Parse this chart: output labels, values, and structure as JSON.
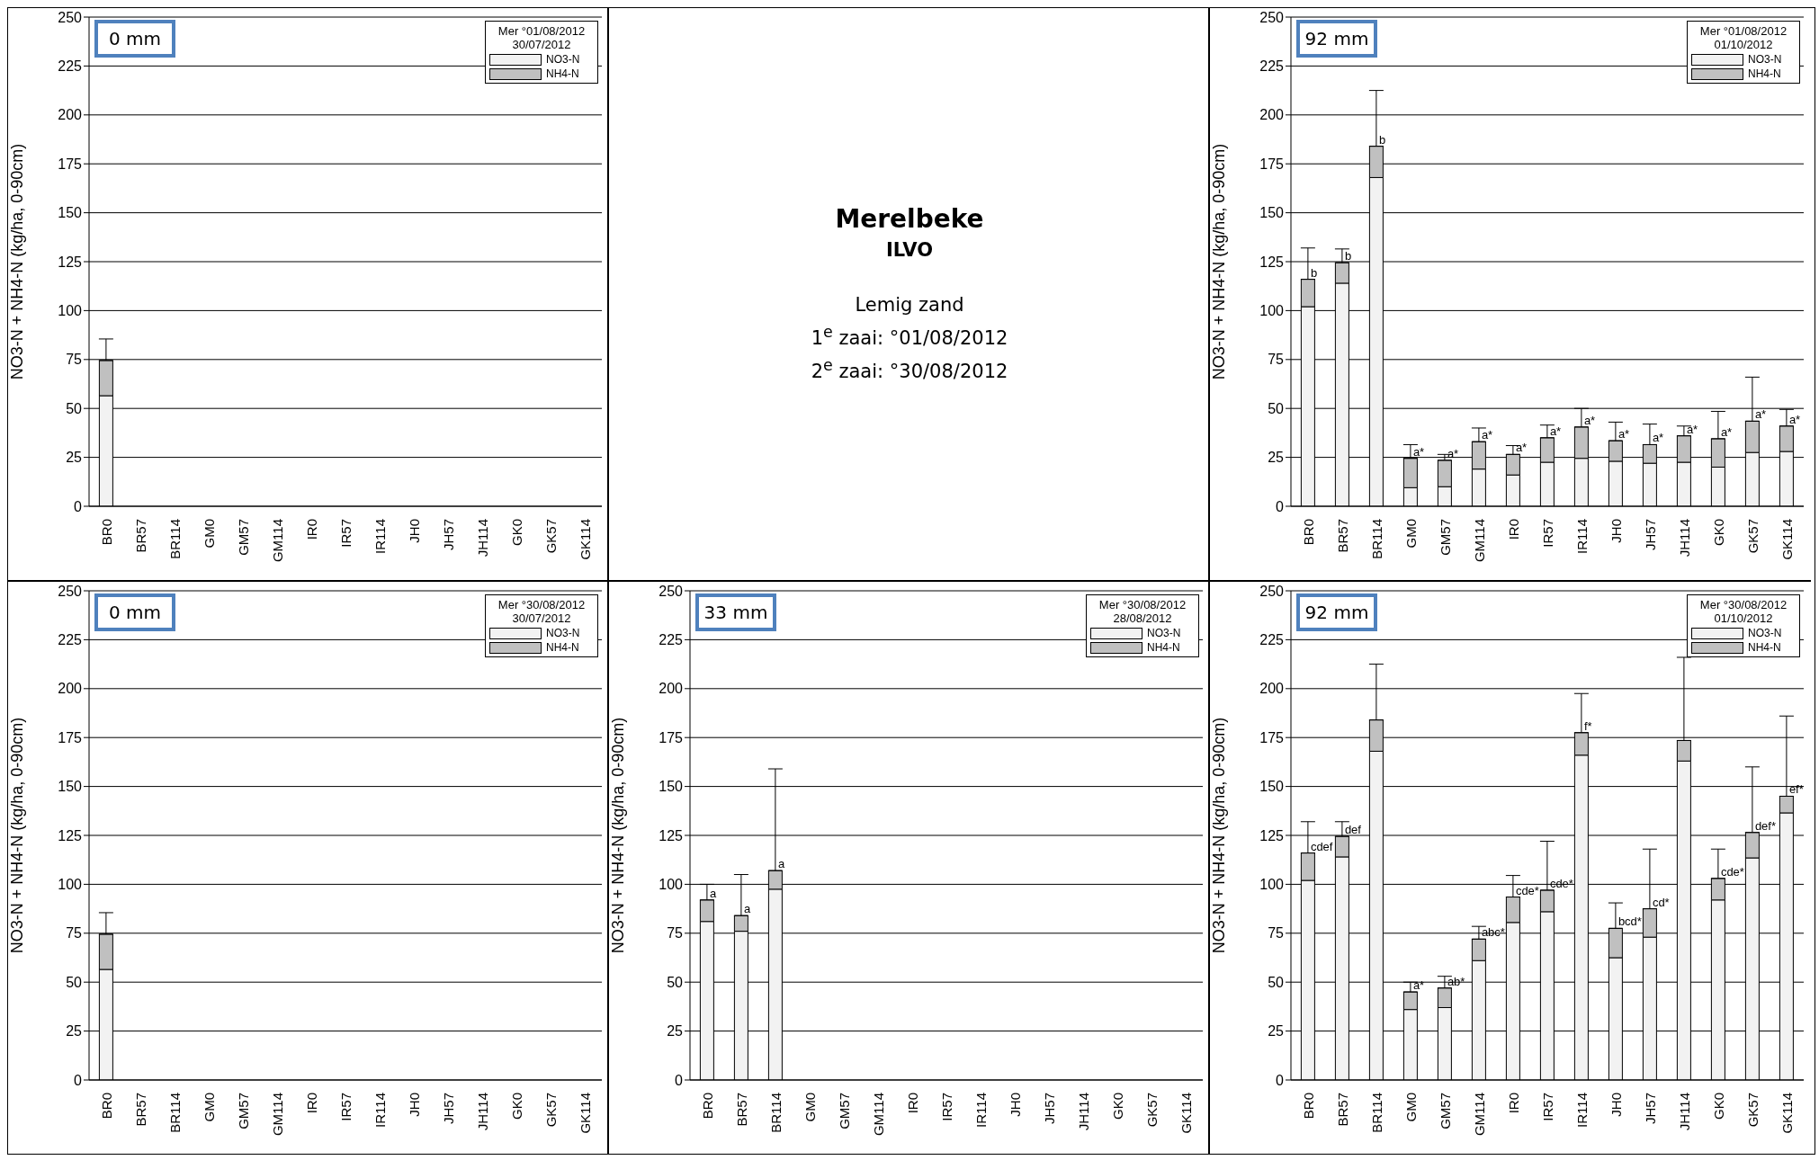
{
  "chart_data": [
    {
      "type": "bar",
      "title": "0 mm",
      "legend_title": "Mer °01/08/2012\n30/07/2012",
      "ylabel": "NO3-N + NH4-N (kg/ha, 0-90cm)",
      "categories": [
        "BR0",
        "BR57",
        "BR114",
        "GM0",
        "GM57",
        "GM114",
        "IR0",
        "IR57",
        "IR114",
        "JH0",
        "JH57",
        "JH114",
        "GK0",
        "GK57",
        "GK114"
      ],
      "stacked": true,
      "ylim": [
        0,
        250
      ],
      "yticks": [
        0,
        25,
        50,
        75,
        100,
        125,
        150,
        175,
        200,
        225,
        250
      ],
      "grid": "y",
      "legend": "top right",
      "series": [
        {
          "name": "NO3-N",
          "color": "#f2f2f2",
          "values": [
            56.5,
            0,
            0,
            0,
            0,
            0,
            0,
            0,
            0,
            0,
            0,
            0,
            0,
            0,
            0
          ]
        },
        {
          "name": "NH4-N",
          "color": "#c0c0c0",
          "values": [
            18,
            0,
            0,
            0,
            0,
            0,
            0,
            0,
            0,
            0,
            0,
            0,
            0,
            0,
            0
          ],
          "errors": [
            [
              74.5,
              85.5
            ],
            null,
            null,
            null,
            null,
            null,
            null,
            null,
            null,
            null,
            null,
            null,
            null,
            null,
            null
          ]
        }
      ]
    },
    {
      "type": "other",
      "title": "Merelbeke",
      "subtitle": "ILVO",
      "annotations": [
        "Lemig zand",
        "1$^{e}$ zaai: °01/08/2012",
        "2$^{e}$ zaai: °30/08/2012"
      ]
    },
    {
      "type": "bar",
      "title": "92 mm",
      "legend_title": "Mer °01/08/2012\n01/10/2012",
      "ylabel": "NO3-N + NH4-N (kg/ha, 0-90cm)",
      "categories": [
        "BR0",
        "BR57",
        "BR114",
        "GM0",
        "GM57",
        "GM114",
        "IR0",
        "IR57",
        "IR114",
        "JH0",
        "JH57",
        "JH114",
        "GK0",
        "GK57",
        "GK114"
      ],
      "stacked": true,
      "ylim": [
        0,
        250
      ],
      "yticks": [
        0,
        25,
        50,
        75,
        100,
        125,
        150,
        175,
        200,
        225,
        250
      ],
      "grid": "y",
      "legend": "top right",
      "series": [
        {
          "name": "NO3-N",
          "color": "#f2f2f2",
          "values": [
            102,
            114,
            168,
            9.5,
            10,
            19,
            16,
            22.5,
            24.5,
            23,
            22,
            22.5,
            20,
            27.5,
            28
          ]
        },
        {
          "name": "NH4-N",
          "color": "#c0c0c0",
          "values": [
            14,
            10.5,
            16,
            15,
            13.5,
            14,
            10.5,
            12.5,
            16,
            10.5,
            9.5,
            13.5,
            14.5,
            16,
            13
          ],
          "errors": [
            [
              116,
              132
            ],
            [
              124.5,
              131.5
            ],
            [
              184,
              212.5
            ],
            [
              24.5,
              31.5
            ],
            [
              23.5,
              26.5
            ],
            [
              33,
              40
            ],
            [
              26.5,
              31
            ],
            [
              35,
              41.5
            ],
            [
              40.5,
              50
            ],
            [
              33.5,
              43
            ],
            [
              31.5,
              42
            ],
            [
              36,
              41
            ],
            [
              34.5,
              48.5
            ],
            [
              43.5,
              66
            ],
            [
              41,
              49.5
            ]
          ],
          "value_labels": [
            "b",
            "b",
            "b",
            "a*",
            "a*",
            "a*",
            "a*",
            "a*",
            "a*",
            "a*",
            "a*",
            "a*",
            "a*",
            "a*",
            "a*"
          ]
        }
      ]
    },
    {
      "type": "bar",
      "title": "0 mm",
      "legend_title": "Mer °30/08/2012\n30/07/2012",
      "ylabel": "NO3-N + NH4-N (kg/ha, 0-90cm)",
      "categories": [
        "BR0",
        "BR57",
        "BR114",
        "GM0",
        "GM57",
        "GM114",
        "IR0",
        "IR57",
        "IR114",
        "JH0",
        "JH57",
        "JH114",
        "GK0",
        "GK57",
        "GK114"
      ],
      "stacked": true,
      "ylim": [
        0,
        250
      ],
      "yticks": [
        0,
        25,
        50,
        75,
        100,
        125,
        150,
        175,
        200,
        225,
        250
      ],
      "grid": "y",
      "legend": "top right",
      "series": [
        {
          "name": "NO3-N",
          "color": "#f2f2f2",
          "values": [
            56.5,
            0,
            0,
            0,
            0,
            0,
            0,
            0,
            0,
            0,
            0,
            0,
            0,
            0,
            0
          ]
        },
        {
          "name": "NH4-N",
          "color": "#c0c0c0",
          "values": [
            18,
            0,
            0,
            0,
            0,
            0,
            0,
            0,
            0,
            0,
            0,
            0,
            0,
            0,
            0
          ],
          "errors": [
            [
              74.5,
              85.5
            ],
            null,
            null,
            null,
            null,
            null,
            null,
            null,
            null,
            null,
            null,
            null,
            null,
            null,
            null
          ]
        }
      ]
    },
    {
      "type": "bar",
      "title": "33 mm",
      "legend_title": "Mer °30/08/2012\n28/08/2012",
      "ylabel": "NO3-N + NH4-N (kg/ha, 0-90cm)",
      "categories": [
        "BR0",
        "BR57",
        "BR114",
        "GM0",
        "GM57",
        "GM114",
        "IR0",
        "IR57",
        "IR114",
        "JH0",
        "JH57",
        "JH114",
        "GK0",
        "GK57",
        "GK114"
      ],
      "stacked": true,
      "ylim": [
        0,
        250
      ],
      "yticks": [
        0,
        25,
        50,
        75,
        100,
        125,
        150,
        175,
        200,
        225,
        250
      ],
      "grid": "y",
      "legend": "top right",
      "series": [
        {
          "name": "NO3-N",
          "color": "#f2f2f2",
          "values": [
            81,
            76,
            97.5,
            0,
            0,
            0,
            0,
            0,
            0,
            0,
            0,
            0,
            0,
            0,
            0
          ]
        },
        {
          "name": "NH4-N",
          "color": "#c0c0c0",
          "values": [
            11,
            8,
            9.5,
            0,
            0,
            0,
            0,
            0,
            0,
            0,
            0,
            0,
            0,
            0,
            0
          ],
          "errors": [
            [
              92,
              100
            ],
            [
              84,
              105
            ],
            [
              107,
              159
            ],
            null,
            null,
            null,
            null,
            null,
            null,
            null,
            null,
            null,
            null,
            null,
            null
          ],
          "value_labels": [
            "a",
            "a",
            "a",
            null,
            null,
            null,
            null,
            null,
            null,
            null,
            null,
            null,
            null,
            null,
            null
          ]
        }
      ]
    },
    {
      "type": "bar",
      "title": "92 mm",
      "legend_title": "Mer °30/08/2012\n01/10/2012",
      "ylabel": "NO3-N + NH4-N (kg/ha, 0-90cm)",
      "categories": [
        "BR0",
        "BR57",
        "BR114",
        "GM0",
        "GM57",
        "GM114",
        "IR0",
        "IR57",
        "IR114",
        "JH0",
        "JH57",
        "JH114",
        "GK0",
        "GK57",
        "GK114"
      ],
      "stacked": true,
      "ylim": [
        0,
        250
      ],
      "yticks": [
        0,
        25,
        50,
        75,
        100,
        125,
        150,
        175,
        200,
        225,
        250
      ],
      "grid": "y",
      "legend": "top right",
      "series": [
        {
          "name": "NO3-N",
          "color": "#f2f2f2",
          "values": [
            102,
            114,
            168,
            36,
            37,
            61,
            80.5,
            86,
            166,
            62.5,
            73,
            163,
            92,
            113.5,
            136.5
          ]
        },
        {
          "name": "NH4-N",
          "color": "#c0c0c0",
          "values": [
            14,
            10.5,
            16,
            9,
            10,
            11,
            13,
            11,
            11.5,
            15,
            14.5,
            10.5,
            11,
            13,
            8.5
          ],
          "errors": [
            [
              116,
              132
            ],
            [
              124.5,
              132
            ],
            [
              184,
              212.5
            ],
            [
              45,
              50
            ],
            [
              47,
              53
            ],
            [
              72,
              78.5
            ],
            [
              93.5,
              104.5
            ],
            [
              97,
              122
            ],
            [
              177.5,
              197.5
            ],
            [
              77.5,
              90.5
            ],
            [
              87.5,
              118
            ],
            [
              173.5,
              216
            ],
            [
              103,
              118
            ],
            [
              126.5,
              160
            ],
            [
              145,
              186
            ]
          ],
          "value_labels": [
            "cdef",
            "def",
            null,
            "a*",
            "ab*",
            "abc*",
            "cde*",
            "cde*",
            "f*",
            "bcd*",
            "cd*",
            null,
            "cde*",
            "def*",
            "ef*"
          ]
        }
      ]
    }
  ]
}
